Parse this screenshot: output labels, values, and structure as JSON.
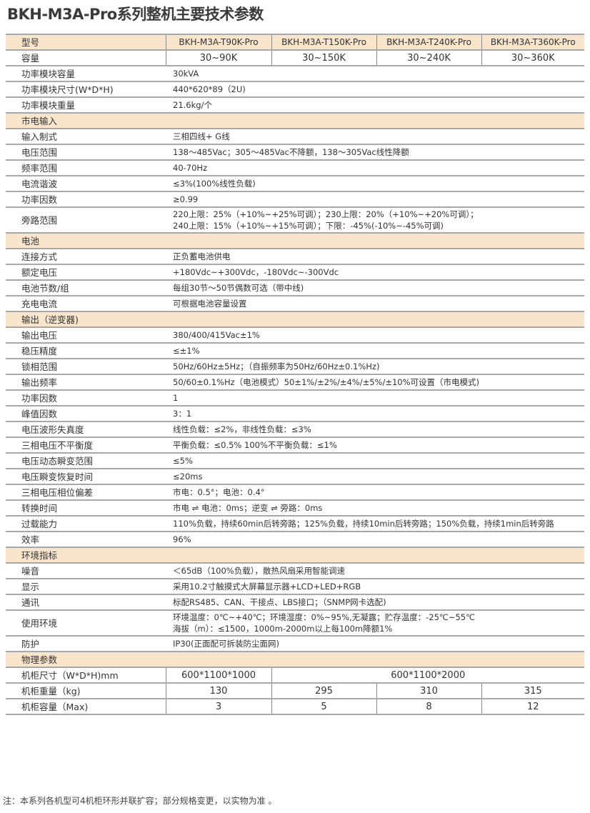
{
  "title": "BKH-M3A-Pro系列整机主要技术参数",
  "header": {
    "label": "型号",
    "models": [
      "BKH-M3A-T90K-Pro",
      "BKH-M3A-T150K-Pro",
      "BKH-M3A-T240K-Pro",
      "BKH-M3A-T360K-Pro"
    ]
  },
  "capacity": {
    "label": "容量",
    "values": [
      "30~90K",
      "30~150K",
      "30~240K",
      "30~360K"
    ]
  },
  "general": [
    {
      "label": "功率模块容量",
      "value": [
        "30kVA"
      ]
    },
    {
      "label": "功率模块尺寸(W*D*H)",
      "value": [
        "440*620*89（2U)"
      ]
    },
    {
      "label": "功率模块重量",
      "value": [
        " 21.6kg/个"
      ]
    }
  ],
  "sections": [
    {
      "title": "市电输入",
      "rows": [
        {
          "label": "输入制式",
          "value": [
            "三相四线+ G线"
          ]
        },
        {
          "label": "电压范围",
          "value": [
            "138～485Vac；305～485Vac不降额，138～305Vac线性降额"
          ]
        },
        {
          "label": "频率范围",
          "value": [
            "40-70Hz"
          ]
        },
        {
          "label": "电流谐波",
          "value": [
            "≤3%(100%线性负载)"
          ]
        },
        {
          "label": "功率因数",
          "value": [
            "≥0.99"
          ]
        },
        {
          "label": "旁路范围",
          "value": [
            "220上限：25%（+10%~+25%可调）；230上限：20%（+10%~+20%可调）；",
            "240上限：15%（+10%~+15%可调）；下限：-45%(-10%~-45%可调)"
          ]
        }
      ]
    },
    {
      "title": "电池",
      "rows": [
        {
          "label": "连接方式",
          "value": [
            "正负蓄电池供电"
          ]
        },
        {
          "label": "额定电压",
          "value": [
            "+180Vdc~+300Vdc，-180Vdc~-300Vdc"
          ]
        },
        {
          "label": "电池节数/组",
          "value": [
            "每组30节～50节偶数可选（带中线)"
          ]
        },
        {
          "label": "充电电流",
          "value": [
            "可根据电池容量设置"
          ]
        }
      ]
    },
    {
      "title": "输出（逆变器)",
      "rows": [
        {
          "label": "输出电压",
          "value": [
            "380/400/415Vac±1%"
          ]
        },
        {
          "label": "稳压精度",
          "value": [
            "≤±1%"
          ]
        },
        {
          "label": "锁相范围",
          "value": [
            "50Hz/60Hz±5Hz；（自振频率为50Hz/60Hz±0.1%Hz)"
          ]
        },
        {
          "label": "输出频率",
          "value": [
            "50/60±0.1%Hz（电池模式）50±1%/±2%/±4%/±5%/±10%可设置（市电模式)"
          ]
        },
        {
          "label": "功率因数",
          "value": [
            "1"
          ]
        },
        {
          "label": "峰值因数",
          "value": [
            "3：1"
          ]
        },
        {
          "label": "电压波形失真度",
          "value": [
            " 线性负载：≤2%，非线性负载：≤3%"
          ]
        },
        {
          "label": "三相电压不平衡度",
          "value": [
            " 平衡负载：≤0.5%   100%不平衡负载：≤1%"
          ]
        },
        {
          "label": "电压动态瞬变范围",
          "value": [
            "≤5%"
          ]
        },
        {
          "label": "电压瞬变恢复时间",
          "value": [
            "≤20ms"
          ]
        },
        {
          "label": "三相电压相位偏差",
          "value": [
            "市电：0.5°；电池：0.4°"
          ]
        },
        {
          "label": "转换时间",
          "value": [
            "市电 ⇌ 电池：0ms；逆变 ⇌ 旁路：0ms"
          ]
        },
        {
          "label": "过载能力",
          "value": [
            "110%负载，持续60min后转旁路；125%负载，持续10min后转旁路；150%负载，持续1min后转旁路"
          ]
        },
        {
          "label": "效率",
          "value": [
            "96%"
          ]
        }
      ]
    },
    {
      "title": "环境指标",
      "rows": [
        {
          "label": "噪音",
          "value": [
            "＜65dB（100%负载），散热风扇采用智能调速"
          ]
        },
        {
          "label": "显示",
          "value": [
            "采用10.2寸触摸式大屏幕显示器+LCD+LED+RGB"
          ]
        },
        {
          "label": "通讯",
          "value": [
            "标配RS485、CAN、干接点、LBS接口；（SNMP网卡选配)"
          ]
        },
        {
          "label": "使用环境",
          "value": [
            "环境温度：0℃~+40℃；环境湿度：0%~95%,无凝露；贮存温度：-25℃~55℃",
            "海拔（m）：≤1500，1000m-2000m以上每100m降额1%"
          ]
        },
        {
          "label": "防护",
          "value": [
            " IP30(正面配可拆装防尘面网)"
          ]
        }
      ]
    }
  ],
  "physical": {
    "title": "物理参数",
    "cabinet_size": {
      "label": "机柜尺寸（W*D*H)mm",
      "values": [
        "600*1100*1000",
        "600*1100*2000"
      ]
    },
    "cabinet_weight": {
      "label": "机柜重量（kg)",
      "values": [
        "130",
        "295",
        "310",
        "315"
      ]
    },
    "cabinet_capacity": {
      "label": "机柜容量（Max)",
      "values": [
        "3",
        "5",
        "8",
        "12"
      ]
    }
  },
  "note": "注：本系列各机型可4机柜环形并联扩容；部分规格变更，以实物为准 。"
}
